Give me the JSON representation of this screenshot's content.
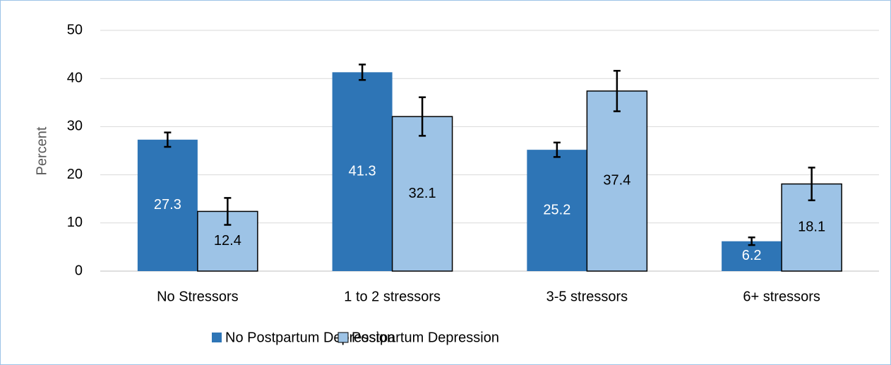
{
  "chart_data": {
    "type": "bar",
    "y_label": "Percent",
    "categories": [
      "No Stressors",
      "1 to 2 stressors",
      "3-5 stressors",
      "6+ stressors"
    ],
    "series": [
      {
        "name": "No Postpartum Depression",
        "color": "#2e75b6",
        "values": [
          27.3,
          41.3,
          25.2,
          6.2
        ],
        "errors": [
          1.5,
          1.6,
          1.5,
          0.8
        ]
      },
      {
        "name": "Postpartum Depression",
        "color": "#9dc3e6",
        "values": [
          12.4,
          32.1,
          37.4,
          18.1
        ],
        "errors": [
          2.8,
          4.0,
          4.2,
          3.4
        ]
      }
    ],
    "ylim": [
      0,
      50
    ],
    "yticks": [
      0,
      10,
      20,
      30,
      40,
      50
    ],
    "grid": true,
    "legend": "bottom",
    "data_labels": true
  }
}
